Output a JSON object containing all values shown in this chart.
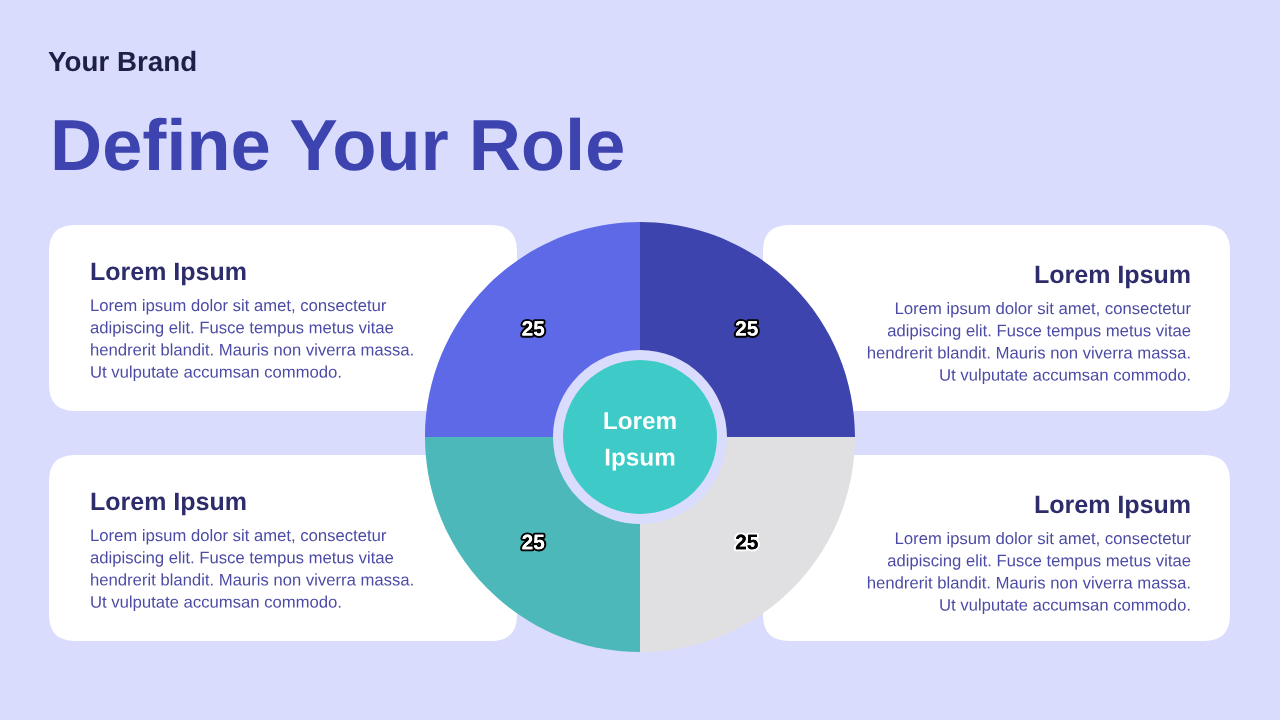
{
  "chart_data": [
    {
      "type": "donut",
      "title": "Define Your Role",
      "categories": [
        null,
        null,
        null,
        null
      ],
      "values": [
        25,
        25,
        25,
        25
      ],
      "colors": [
        "#3d44ad",
        "#e0e0e2",
        "#4cb8b9",
        "#5e69e8"
      ],
      "data_labels": true,
      "annotations": [
        "Your Brand",
        "Lorem\nIpsum"
      ]
    },
    {
      "type": "other",
      "title": "Lorem Ipsum",
      "annotations": [
        "Lorem ipsum dolor sit amet, consectetur\nadipiscing elit. Fusce tempus metus vitae\nhendrerit blandit. Mauris non viverra massa.\nUt vulputate accumsan commodo."
      ]
    },
    {
      "type": "other",
      "title": "Lorem Ipsum",
      "annotations": [
        "Lorem ipsum dolor sit amet, consectetur\nadipiscing elit. Fusce tempus metus vitae\nhendrerit blandit. Mauris non viverra massa.\nUt vulputate accumsan commodo."
      ]
    },
    {
      "type": "other",
      "title": "Lorem Ipsum",
      "annotations": [
        "Lorem ipsum dolor sit amet, consectetur\nadipiscing elit. Fusce tempus metus vitae\nhendrerit blandit. Mauris non viverra massa.\nUt vulputate accumsan commodo."
      ]
    },
    {
      "type": "other",
      "title": "Lorem Ipsum",
      "annotations": [
        "Lorem ipsum dolor sit amet, consectetur\nadipiscing elit. Fusce tempus metus vitae\nhendrerit blandit. Mauris non viverra massa.\nUt vulputate accumsan commodo."
      ]
    }
  ]
}
